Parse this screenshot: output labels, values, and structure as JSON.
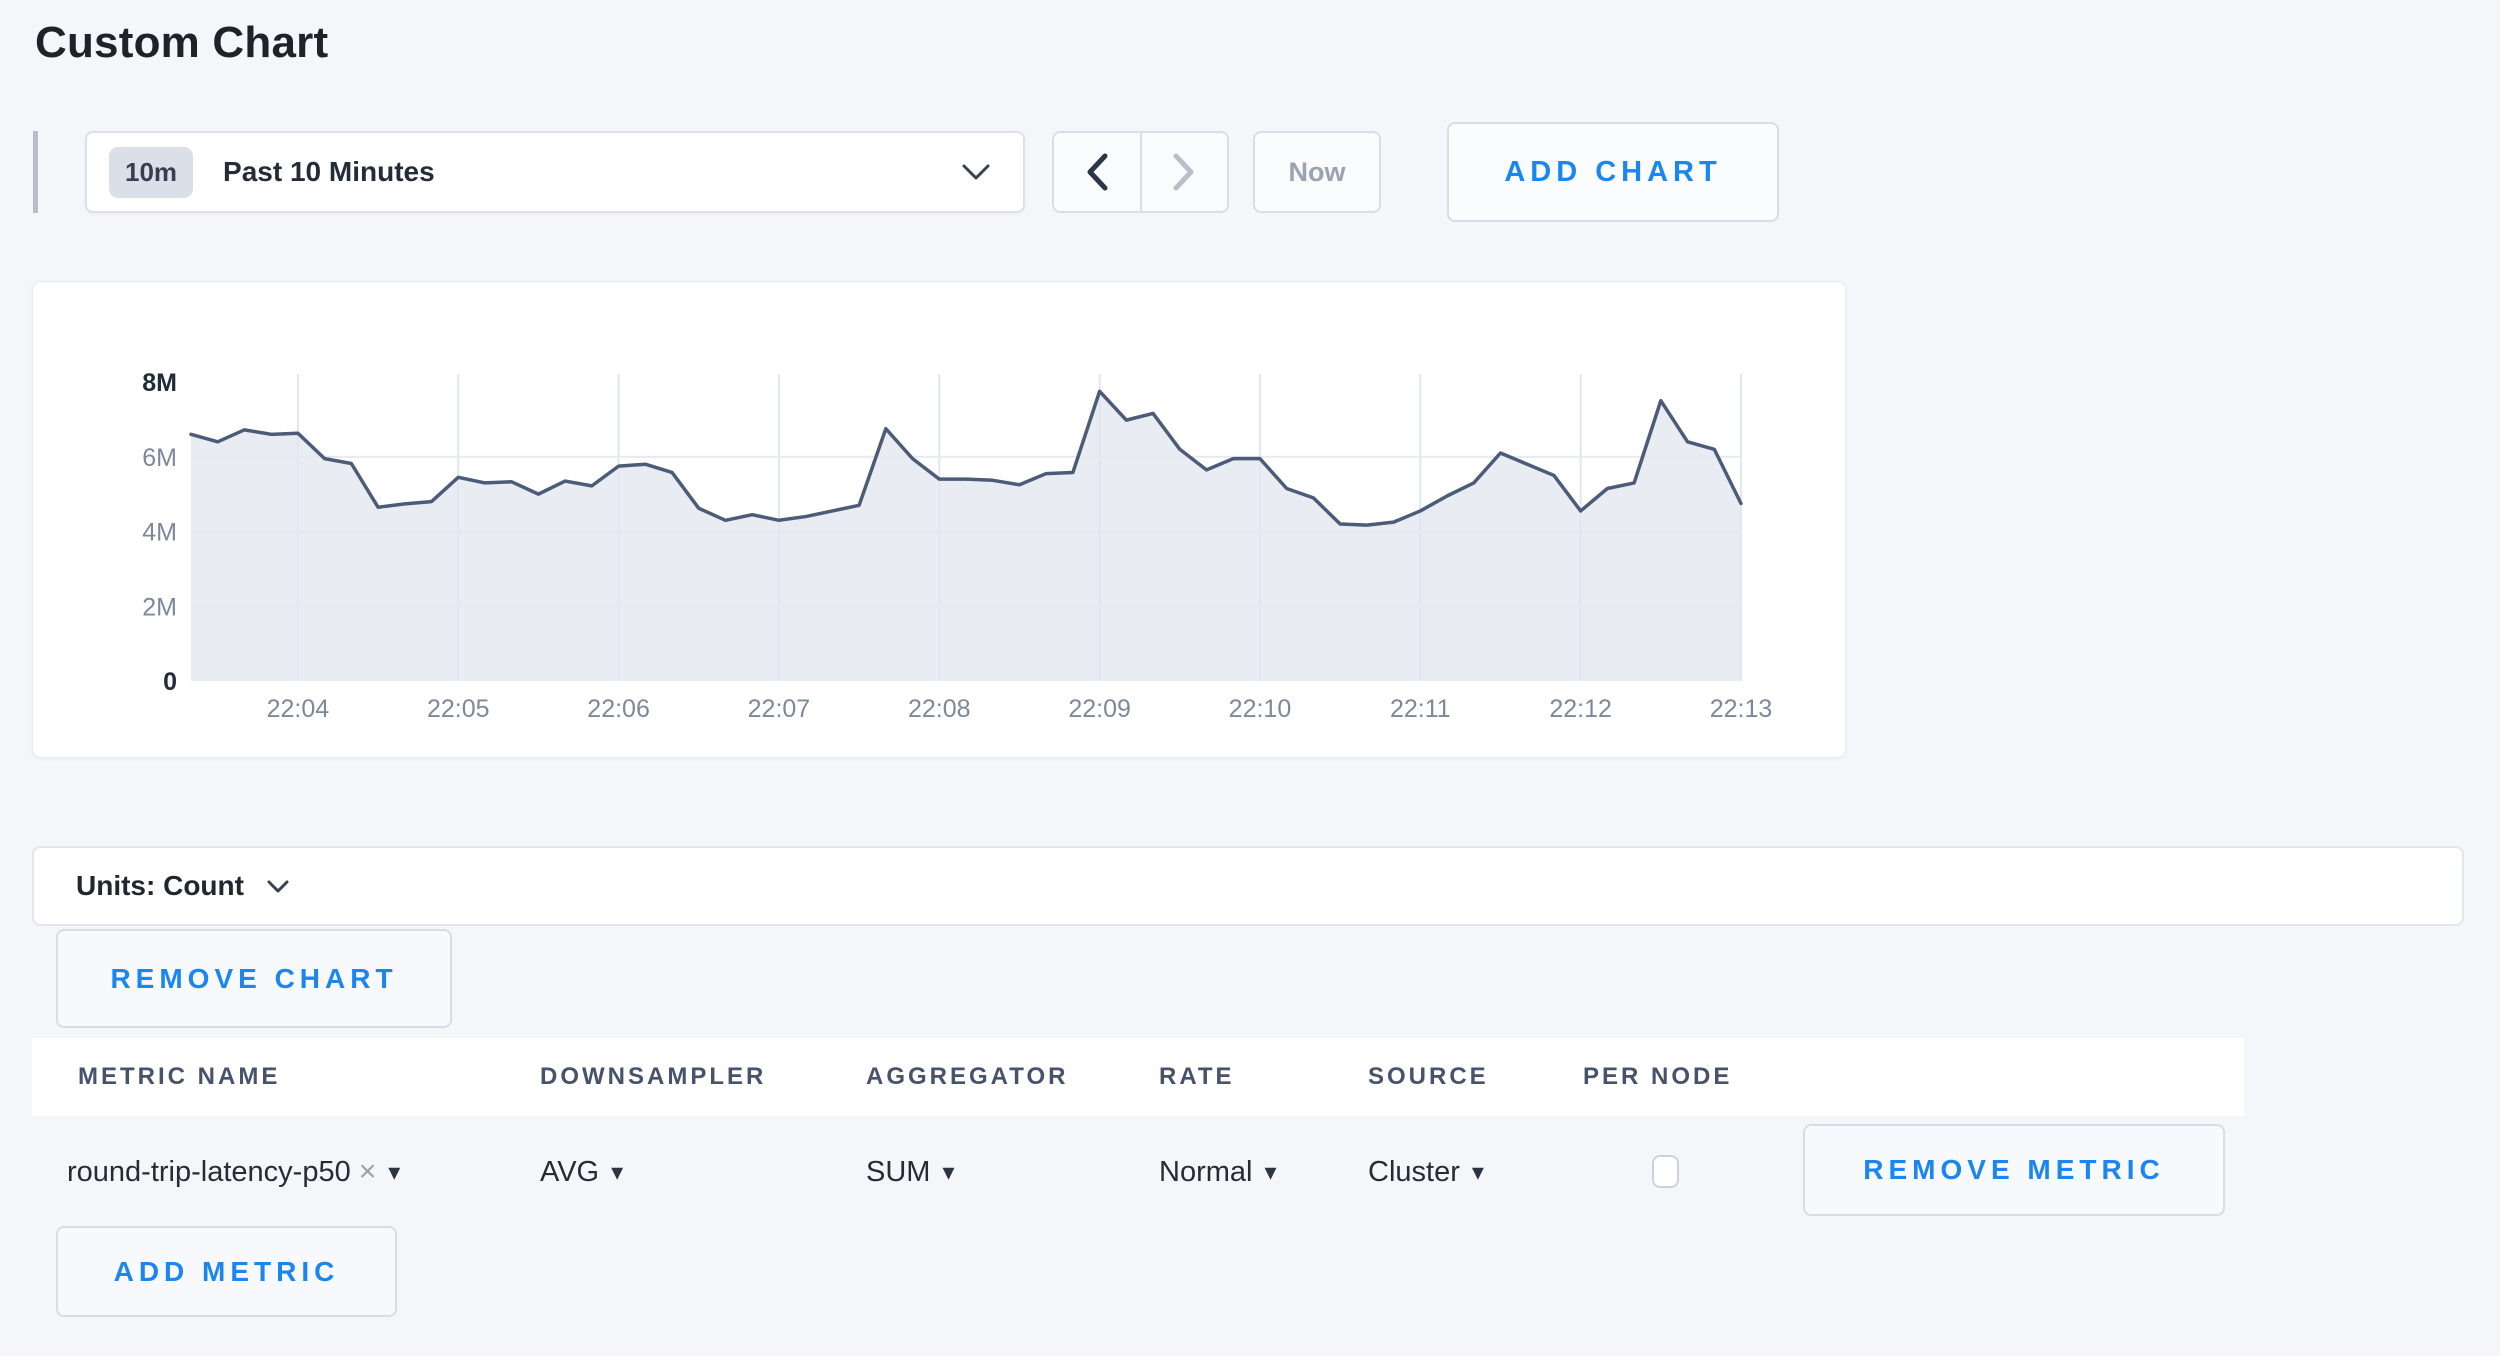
{
  "page": {
    "title": "Custom Chart",
    "background": "#f5f6fa",
    "accent_blue": "#1b85f0"
  },
  "toolbar": {
    "range_badge": "10m",
    "range_label": "Past 10 Minutes",
    "now_label": "Now",
    "add_chart_label": "ADD CHART"
  },
  "chart_data": {
    "type": "area",
    "title": "",
    "xlabel": "",
    "ylabel": "",
    "ylim": [
      0,
      8000000
    ],
    "grid": true,
    "legend": "none",
    "y_ticks": [
      {
        "label": "0",
        "value": 0
      },
      {
        "label": "2M",
        "value": 2
      },
      {
        "label": "4M",
        "value": 4
      },
      {
        "label": "6M",
        "value": 6
      },
      {
        "label": "8M",
        "value": 8
      }
    ],
    "x_tick_labels": [
      "22:04",
      "22:05",
      "22:06",
      "22:07",
      "22:08",
      "22:09",
      "22:10",
      "22:11",
      "22:12",
      "22:13"
    ],
    "start_time": "22:03:20",
    "end_time": "22:13:00",
    "interval_seconds": 10,
    "tick_start_offset_s": 40,
    "tick_step_s": 60,
    "window_s": 580,
    "series": [
      {
        "name": "round-trip-latency-p50",
        "values_millions": [
          6.6,
          6.4,
          6.72,
          6.6,
          6.63,
          5.95,
          5.82,
          4.65,
          4.74,
          4.8,
          5.45,
          5.3,
          5.33,
          5.0,
          5.35,
          5.22,
          5.75,
          5.8,
          5.58,
          4.62,
          4.3,
          4.45,
          4.3,
          4.4,
          4.55,
          4.7,
          6.75,
          5.95,
          5.4,
          5.4,
          5.37,
          5.25,
          5.55,
          5.58,
          7.75,
          6.98,
          7.16,
          6.2,
          5.65,
          5.95,
          5.95,
          5.15,
          4.9,
          4.2,
          4.17,
          4.25,
          4.55,
          4.95,
          5.3,
          6.1,
          5.8,
          5.5,
          4.55,
          5.15,
          5.3,
          7.5,
          6.4,
          6.2,
          4.75
        ]
      }
    ],
    "line_color": "#4c5b77",
    "fill_color": "#e9ecf2",
    "gridline_color": "#e2e6ee",
    "axis_label_color": "#7e889b",
    "axis_label_bold_color": "#222b3a"
  },
  "units_bar": {
    "label": "Units: Count"
  },
  "chart_actions": {
    "remove_chart_label": "REMOVE CHART"
  },
  "metrics_table": {
    "headers": [
      "METRIC NAME",
      "DOWNSAMPLER",
      "AGGREGATOR",
      "RATE",
      "SOURCE",
      "PER NODE"
    ],
    "rows": [
      {
        "metric_name": "round-trip-latency-p50",
        "clear_icon": "×",
        "caret_icon": "▾",
        "downsampler": "AVG",
        "aggregator": "SUM",
        "rate": "Normal",
        "source": "Cluster",
        "per_node_checked": false,
        "remove_label": "REMOVE METRIC"
      }
    ],
    "add_metric_label": "ADD METRIC"
  }
}
